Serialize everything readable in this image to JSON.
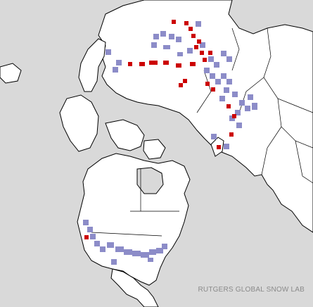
{
  "credit": "RUTGERS GLOBAL SNOW LAB",
  "colors": {
    "ocean": "#d9d9d9",
    "snow": "#ffffff",
    "land": "#ffffff",
    "boundary": "#000000",
    "new_snow": "#8c8cc8",
    "snow_loss": "#cc0000"
  }
}
